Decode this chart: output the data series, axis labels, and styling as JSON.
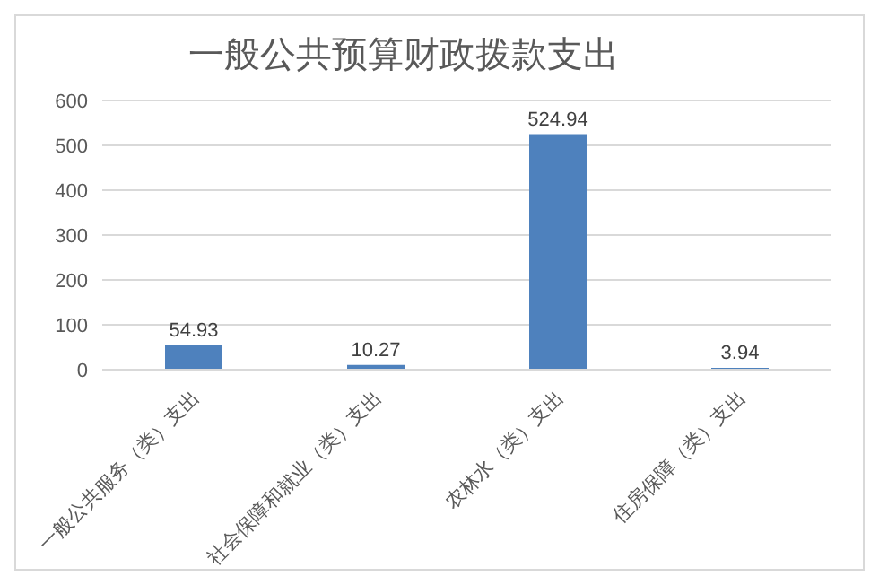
{
  "chart_data": {
    "type": "bar",
    "title": "一般公共预算财政拨款支出",
    "categories": [
      "一般公共服务（类）支出",
      "社会保障和就业（类）支出",
      "农林水（类）支出",
      "住房保障（类）支出"
    ],
    "values": [
      54.93,
      10.27,
      524.94,
      3.94
    ],
    "color": "#4e81bd",
    "ylim": [
      0,
      600
    ],
    "yticks": [
      0,
      100,
      200,
      300,
      400,
      500,
      600
    ],
    "grid": "y",
    "data_labels": true
  }
}
